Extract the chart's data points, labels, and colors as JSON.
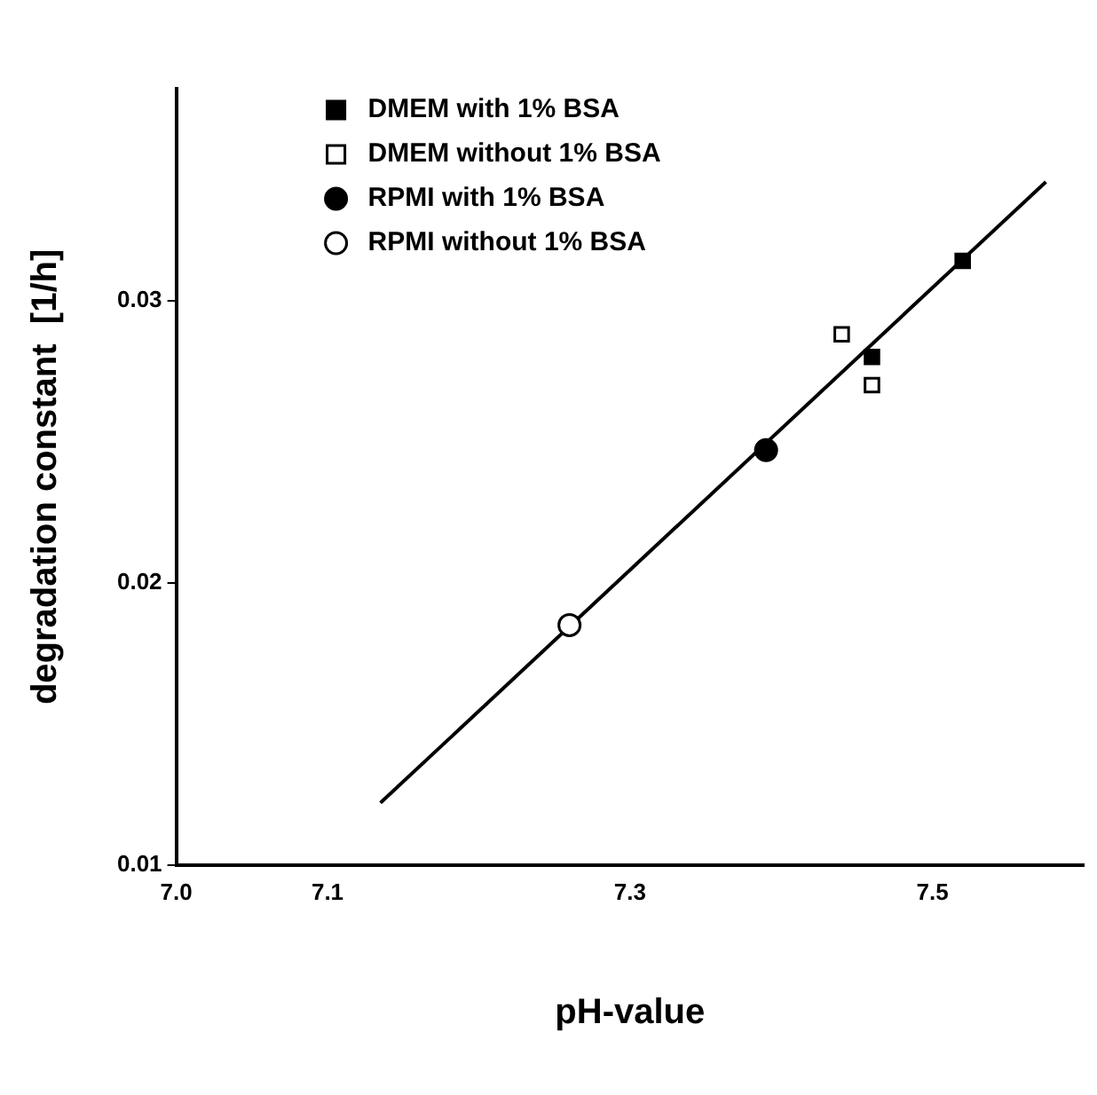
{
  "chart_data": {
    "type": "scatter",
    "xlabel": "pH-value",
    "ylabel": "degradation constant  [1/h]",
    "xlim": [
      7.0,
      7.6
    ],
    "xticks": [
      {
        "value": 7.0,
        "label": "7.0"
      },
      7.1,
      7.3,
      7.5
    ],
    "ylim": [
      0.01,
      0.0375
    ],
    "yticks": [
      0.01,
      0.02,
      0.03
    ],
    "grid": false,
    "legend": "top left",
    "series": [
      {
        "name": "DMEM with 1% BSA",
        "color": "#000000",
        "marker": "square",
        "x": [
          7.52,
          7.46
        ],
        "values": [
          0.0314,
          0.028
        ]
      },
      {
        "name": "DMEM without 1% BSA",
        "color": "#ffffff",
        "marker": "square",
        "x": [
          7.44,
          7.46
        ],
        "values": [
          0.0288,
          0.027
        ]
      },
      {
        "name": "RPMI with 1% BSA",
        "color": "#000000",
        "marker": "circle",
        "x": [
          7.39
        ],
        "values": [
          0.0247
        ]
      },
      {
        "name": "RPMI without 1% BSA",
        "color": "#ffffff",
        "marker": "circle",
        "x": [
          7.26
        ],
        "values": [
          0.0185
        ]
      },
      {
        "type": "line",
        "color": "#000000",
        "marker": "none",
        "line_style": "solid",
        "x": [
          7.135,
          7.575
        ],
        "values": [
          0.0122,
          0.0342
        ]
      }
    ]
  }
}
